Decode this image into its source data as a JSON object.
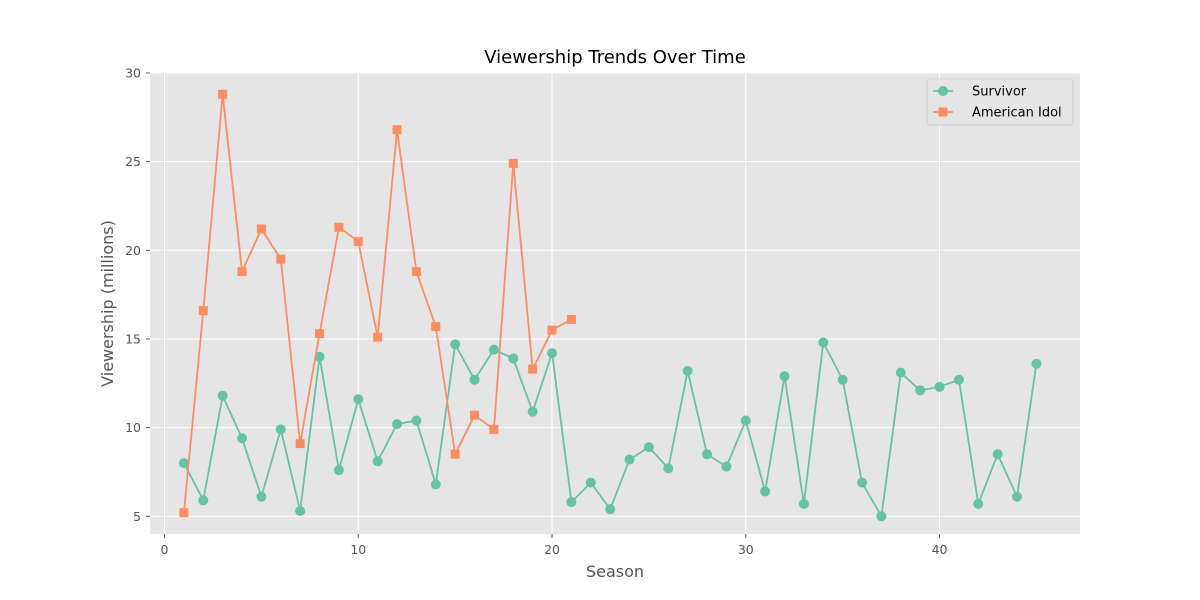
{
  "chart_data": {
    "type": "line",
    "title": "Viewership Trends Over Time",
    "xlabel": "Season",
    "ylabel": "Viewership (millions)",
    "xlim": [
      -0.75,
      47.25
    ],
    "ylim": [
      4,
      30
    ],
    "xticks": [
      0,
      10,
      20,
      30,
      40
    ],
    "yticks": [
      5,
      10,
      15,
      20,
      25,
      30
    ],
    "grid": true,
    "legend_position": "top-right",
    "background_color": "#e5e5e5",
    "series": [
      {
        "name": "Survivor",
        "color": "#66c2a5",
        "marker": "circle",
        "x": [
          1,
          2,
          3,
          4,
          5,
          6,
          7,
          8,
          9,
          10,
          11,
          12,
          13,
          14,
          15,
          16,
          17,
          18,
          19,
          20,
          21,
          22,
          23,
          24,
          25,
          26,
          27,
          28,
          29,
          30,
          31,
          32,
          33,
          34,
          35,
          36,
          37,
          38,
          39,
          40,
          41,
          42,
          43,
          44,
          45
        ],
        "y": [
          8.0,
          5.9,
          11.8,
          9.4,
          6.1,
          9.9,
          5.3,
          14.0,
          7.6,
          11.6,
          8.1,
          10.2,
          10.4,
          6.8,
          14.7,
          12.7,
          14.4,
          13.9,
          10.9,
          14.2,
          5.8,
          6.9,
          5.4,
          8.2,
          8.9,
          7.7,
          13.2,
          8.5,
          7.8,
          10.4,
          6.4,
          12.9,
          5.7,
          14.8,
          12.7,
          6.9,
          5.0,
          13.1,
          12.1,
          12.3,
          12.7,
          5.7,
          8.5,
          6.1,
          13.6
        ]
      },
      {
        "name": "American Idol",
        "color": "#fc8d62",
        "marker": "square",
        "x": [
          1,
          2,
          3,
          4,
          5,
          6,
          7,
          8,
          9,
          10,
          11,
          12,
          13,
          14,
          15,
          16,
          17,
          18,
          19,
          20,
          21
        ],
        "y": [
          5.2,
          16.6,
          28.8,
          18.8,
          21.2,
          19.5,
          9.1,
          15.3,
          21.3,
          20.5,
          15.1,
          26.8,
          18.8,
          15.7,
          8.5,
          10.7,
          9.9,
          24.9,
          13.3,
          15.5,
          16.1
        ]
      }
    ]
  }
}
